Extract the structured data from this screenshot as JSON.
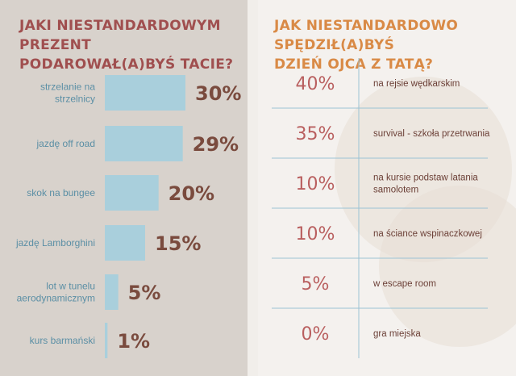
{
  "left": {
    "title_line1": "JAKI NIESTANDARDOWYM PREZENT",
    "title_line2": "PODAROWAŁ(A)BYŚ TACIE?"
  },
  "right": {
    "title_line1": "JAK NIESTANDARDOWO SPĘDZIŁ(A)BYŚ",
    "title_line2": "DZIEŃ OJCA Z TATĄ?"
  },
  "colors": {
    "left_title": "#a04f4f",
    "right_title": "#d98a46",
    "bar": "#a9cfdc",
    "category_text": "#5b8fa5",
    "percent_text": "#7a4b3e",
    "right_percent": "#b95f5f",
    "divider": "#9cc3d4"
  },
  "chart_data": [
    {
      "type": "bar",
      "orientation": "horizontal",
      "title": "JAKI NIESTANDARDOWYM PREZENT PODAROWAŁ(A)BYŚ TACIE?",
      "categories": [
        [
          "strzelanie na",
          "strzelnicy"
        ],
        [
          "jazdę off road"
        ],
        [
          "skok na bungee"
        ],
        [
          "jazdę Lamborghini"
        ],
        [
          "lot w tunelu",
          "aerodynamicznym"
        ],
        [
          "kurs barmański"
        ]
      ],
      "values": [
        30,
        29,
        20,
        15,
        5,
        1
      ],
      "value_labels": [
        "30%",
        "29%",
        "20%",
        "15%",
        "5%",
        "1%"
      ],
      "xlim": [
        0,
        30
      ],
      "grid": false,
      "legend": "none"
    },
    {
      "type": "table",
      "title": "JAK NIESTANDARDOWO SPĘDZIŁ(A)BYŚ DZIEŃ OJCA Z TATĄ?",
      "rows": [
        {
          "value": 40,
          "label": "40%",
          "text": [
            "na rejsie wędkarskim"
          ]
        },
        {
          "value": 35,
          "label": "35%",
          "text": [
            "survival - szkoła przetrwania"
          ]
        },
        {
          "value": 10,
          "label": "10%",
          "text": [
            "na kursie podstaw latania",
            "samolotem"
          ]
        },
        {
          "value": 10,
          "label": "10%",
          "text": [
            "na ściance wspinaczkowej"
          ]
        },
        {
          "value": 5,
          "label": "5%",
          "text": [
            "w escape room"
          ]
        },
        {
          "value": 0,
          "label": "0%",
          "text": [
            "gra miejska"
          ]
        }
      ]
    }
  ]
}
